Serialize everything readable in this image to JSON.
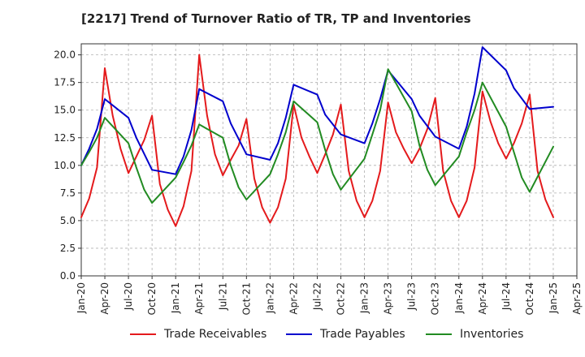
{
  "chart_data": {
    "type": "line",
    "title": "[2217]  Trend of Turnover Ratio of TR, TP and Inventories",
    "xlabel": "",
    "ylabel": "",
    "ylim": [
      0,
      21
    ],
    "yticks": [
      0.0,
      2.5,
      5.0,
      7.5,
      10.0,
      12.5,
      15.0,
      17.5,
      20.0
    ],
    "ytick_labels": [
      "0.0",
      "2.5",
      "5.0",
      "7.5",
      "10.0",
      "12.5",
      "15.0",
      "17.5",
      "20.0"
    ],
    "x_tick_labels": [
      "Jan-20",
      "Apr-20",
      "Jul-20",
      "Oct-20",
      "Jan-21",
      "Apr-21",
      "Jul-21",
      "Oct-21",
      "Jan-22",
      "Apr-22",
      "Jul-22",
      "Oct-22",
      "Jan-23",
      "Apr-23",
      "Jul-23",
      "Oct-23",
      "Jan-24",
      "Apr-24",
      "Jul-24",
      "Oct-24",
      "Jan-25",
      "Apr-25"
    ],
    "grid": true,
    "legend_position": "bottom",
    "series": [
      {
        "name": "Trade Receivables",
        "color": "#e41a1c",
        "points": [
          [
            "2020-01",
            5.3
          ],
          [
            "2020-02",
            7.0
          ],
          [
            "2020-03",
            9.8
          ],
          [
            "2020-04",
            18.8
          ],
          [
            "2020-05",
            14.5
          ],
          [
            "2020-06",
            11.5
          ],
          [
            "2020-07",
            9.3
          ],
          [
            "2020-08",
            10.8
          ],
          [
            "2020-09",
            12.3
          ],
          [
            "2020-10",
            14.5
          ],
          [
            "2020-11",
            8.3
          ],
          [
            "2020-12",
            6.0
          ],
          [
            "2021-01",
            4.5
          ],
          [
            "2021-02",
            6.3
          ],
          [
            "2021-03",
            9.5
          ],
          [
            "2021-04",
            20.0
          ],
          [
            "2021-05",
            14.5
          ],
          [
            "2021-06",
            11.0
          ],
          [
            "2021-07",
            9.1
          ],
          [
            "2021-08",
            10.5
          ],
          [
            "2021-09",
            11.8
          ],
          [
            "2021-10",
            14.2
          ],
          [
            "2021-11",
            8.8
          ],
          [
            "2021-12",
            6.2
          ],
          [
            "2022-01",
            4.8
          ],
          [
            "2022-02",
            6.2
          ],
          [
            "2022-03",
            8.8
          ],
          [
            "2022-04",
            15.5
          ],
          [
            "2022-05",
            12.5
          ],
          [
            "2022-06",
            10.8
          ],
          [
            "2022-07",
            9.3
          ],
          [
            "2022-08",
            11.0
          ],
          [
            "2022-09",
            12.8
          ],
          [
            "2022-10",
            15.5
          ],
          [
            "2022-11",
            9.5
          ],
          [
            "2022-12",
            6.8
          ],
          [
            "2023-01",
            5.3
          ],
          [
            "2023-02",
            6.8
          ],
          [
            "2023-03",
            9.5
          ],
          [
            "2023-04",
            15.7
          ],
          [
            "2023-05",
            13.0
          ],
          [
            "2023-06",
            11.5
          ],
          [
            "2023-07",
            10.2
          ],
          [
            "2023-08",
            11.5
          ],
          [
            "2023-09",
            13.3
          ],
          [
            "2023-10",
            16.1
          ],
          [
            "2023-11",
            9.5
          ],
          [
            "2023-12",
            6.8
          ],
          [
            "2024-01",
            5.3
          ],
          [
            "2024-02",
            6.8
          ],
          [
            "2024-03",
            9.8
          ],
          [
            "2024-04",
            16.7
          ],
          [
            "2024-05",
            14.0
          ],
          [
            "2024-06",
            12.0
          ],
          [
            "2024-07",
            10.6
          ],
          [
            "2024-08",
            12.0
          ],
          [
            "2024-09",
            13.8
          ],
          [
            "2024-10",
            16.4
          ],
          [
            "2024-11",
            9.5
          ],
          [
            "2024-12",
            6.9
          ],
          [
            "2025-01",
            5.3
          ]
        ]
      },
      {
        "name": "Trade Payables",
        "color": "#0000cd",
        "points": [
          [
            "2020-01",
            10.0
          ],
          [
            "2020-02",
            11.5
          ],
          [
            "2020-03",
            13.3
          ],
          [
            "2020-04",
            16.0
          ],
          [
            "2020-07",
            14.3
          ],
          [
            "2020-08",
            12.5
          ],
          [
            "2020-10",
            9.6
          ],
          [
            "2021-01",
            9.2
          ],
          [
            "2021-02",
            10.8
          ],
          [
            "2021-03",
            13.2
          ],
          [
            "2021-04",
            16.9
          ],
          [
            "2021-07",
            15.8
          ],
          [
            "2021-08",
            13.8
          ],
          [
            "2021-10",
            11.0
          ],
          [
            "2022-01",
            10.5
          ],
          [
            "2022-02",
            12.0
          ],
          [
            "2022-03",
            14.3
          ],
          [
            "2022-04",
            17.3
          ],
          [
            "2022-07",
            16.4
          ],
          [
            "2022-08",
            14.6
          ],
          [
            "2022-10",
            12.8
          ],
          [
            "2023-01",
            12.0
          ],
          [
            "2023-02",
            13.8
          ],
          [
            "2023-03",
            16.0
          ],
          [
            "2023-04",
            18.6
          ],
          [
            "2023-07",
            16.0
          ],
          [
            "2023-08",
            14.5
          ],
          [
            "2023-10",
            12.6
          ],
          [
            "2024-01",
            11.5
          ],
          [
            "2024-02",
            13.5
          ],
          [
            "2024-03",
            16.5
          ],
          [
            "2024-04",
            20.7
          ],
          [
            "2024-07",
            18.6
          ],
          [
            "2024-08",
            17.0
          ],
          [
            "2024-10",
            15.1
          ],
          [
            "2025-01",
            15.3
          ]
        ]
      },
      {
        "name": "Inventories",
        "color": "#228b22",
        "points": [
          [
            "2020-01",
            10.0
          ],
          [
            "2020-02",
            11.2
          ],
          [
            "2020-03",
            12.5
          ],
          [
            "2020-04",
            14.3
          ],
          [
            "2020-07",
            12.0
          ],
          [
            "2020-08",
            9.8
          ],
          [
            "2020-09",
            7.8
          ],
          [
            "2020-10",
            6.6
          ],
          [
            "2021-01",
            8.9
          ],
          [
            "2021-02",
            10.3
          ],
          [
            "2021-03",
            11.8
          ],
          [
            "2021-04",
            13.7
          ],
          [
            "2021-07",
            12.5
          ],
          [
            "2021-08",
            10.0
          ],
          [
            "2021-09",
            8.0
          ],
          [
            "2021-10",
            6.9
          ],
          [
            "2022-01",
            9.2
          ],
          [
            "2022-02",
            11.0
          ],
          [
            "2022-03",
            13.0
          ],
          [
            "2022-04",
            15.8
          ],
          [
            "2022-07",
            13.9
          ],
          [
            "2022-08",
            11.4
          ],
          [
            "2022-09",
            9.2
          ],
          [
            "2022-10",
            7.8
          ],
          [
            "2023-01",
            10.6
          ],
          [
            "2023-02",
            12.8
          ],
          [
            "2023-03",
            15.0
          ],
          [
            "2023-04",
            18.7
          ],
          [
            "2023-07",
            14.9
          ],
          [
            "2023-08",
            11.8
          ],
          [
            "2023-09",
            9.6
          ],
          [
            "2023-10",
            8.2
          ],
          [
            "2024-01",
            10.8
          ],
          [
            "2024-02",
            13.0
          ],
          [
            "2024-03",
            15.0
          ],
          [
            "2024-04",
            17.5
          ],
          [
            "2024-07",
            13.5
          ],
          [
            "2024-08",
            11.2
          ],
          [
            "2024-09",
            8.9
          ],
          [
            "2024-10",
            7.6
          ],
          [
            "2025-01",
            11.7
          ]
        ]
      }
    ]
  }
}
